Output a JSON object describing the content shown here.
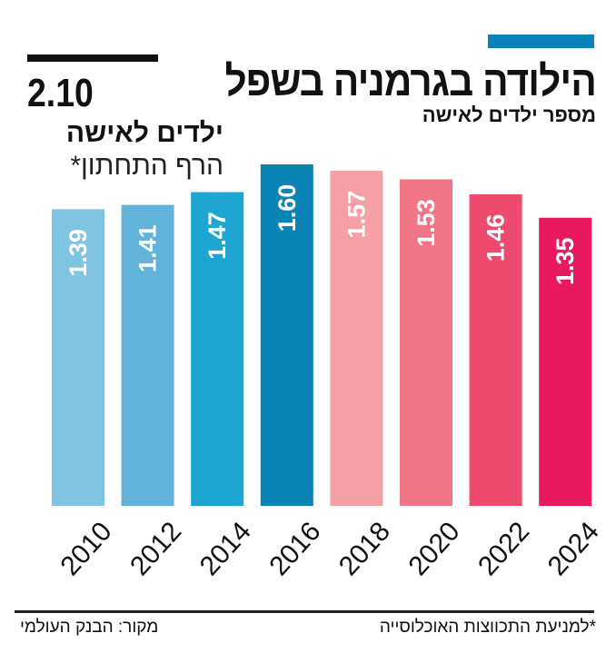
{
  "title": "הילודה בגרמניה בשפל",
  "subtitle": "מספר ילדים לאישה",
  "reference": {
    "value": "2.10",
    "unit": "ילדים לאישה",
    "note": "הרף התחתון*"
  },
  "footer": {
    "source": "מקור: הבנק העולמי",
    "footnote": "*למניעת התכווצות האוכלוסייה"
  },
  "colors": {
    "accent": "#0a84b8"
  },
  "chart_data": {
    "type": "bar",
    "categories": [
      "2010",
      "2012",
      "2014",
      "2016",
      "2018",
      "2020",
      "2022",
      "2024"
    ],
    "values": [
      1.39,
      1.41,
      1.47,
      1.6,
      1.57,
      1.53,
      1.46,
      1.35
    ],
    "labels": [
      "1.39",
      "1.41",
      "1.47",
      "1.60",
      "1.57",
      "1.53",
      "1.46",
      "1.35"
    ],
    "colors": [
      "#7fc4e0",
      "#62b3da",
      "#1ea6d3",
      "#0a84b4",
      "#f4a0a6",
      "#f07585",
      "#ee4a6e",
      "#e8195f"
    ],
    "ylim": [
      0,
      2.37
    ],
    "grid": false,
    "title": "הילודה בגרמניה בשפל",
    "ylabel": "מספר ילדים לאישה"
  }
}
